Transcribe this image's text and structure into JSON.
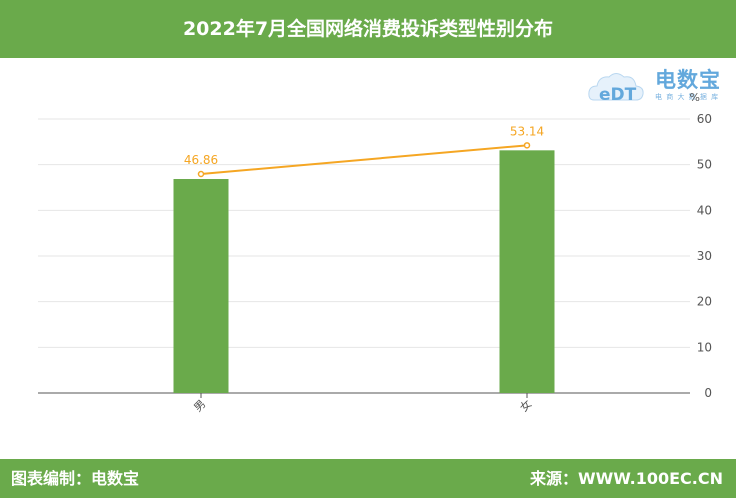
{
  "header": {
    "title": "2022年7月全国网络消费投诉类型性别分布"
  },
  "logo": {
    "name": "电数宝",
    "subtitle": "电 商 大 数 据 库",
    "mark": "eDT"
  },
  "footer": {
    "left": "图表编制：电数宝",
    "right": "来源：WWW.100EC.CN"
  },
  "colors": {
    "bar": "#6aaa4b",
    "line": "#f5a623",
    "header_bg": "#6aaa4b"
  },
  "chart_data": {
    "type": "bar",
    "categories": [
      "男",
      "女"
    ],
    "series": [
      {
        "type": "bar",
        "values": [
          46.86,
          53.14
        ]
      },
      {
        "type": "line",
        "values": [
          46.86,
          53.14
        ]
      }
    ],
    "data_labels": [
      "46.86",
      "53.14"
    ],
    "y_unit": "%",
    "ylim": [
      0,
      60
    ],
    "yticks": [
      0,
      10,
      20,
      30,
      40,
      50,
      60
    ],
    "y_axis_side": "right",
    "grid": true
  }
}
